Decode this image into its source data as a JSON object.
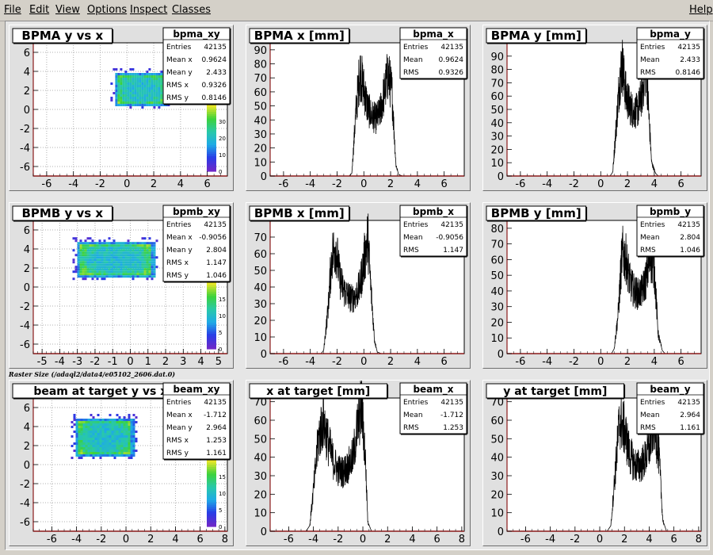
{
  "menu": {
    "file": "File",
    "edit": "Edit",
    "view": "View",
    "options": "Options",
    "inspect": "Inspect",
    "classes": "Classes",
    "help": "Help"
  },
  "raster_label": "Raster Size (/adaql2/data4/e05102_2606.dat.0)",
  "colors": {
    "frame": "#8b1a1a",
    "histogram": "#000000"
  },
  "chart_data": [
    {
      "type": "heatmap",
      "title": "BPMA y vs x",
      "stats": {
        "name": "bpma_xy",
        "rows": [
          [
            "Entries",
            "42135"
          ],
          [
            "Mean x",
            "0.9624"
          ],
          [
            "Mean y",
            "2.433"
          ],
          [
            "RMS x",
            "0.9326"
          ],
          [
            "RMS y",
            "0.8146"
          ]
        ]
      },
      "xlim": [
        -7,
        7.5
      ],
      "ylim": [
        -7,
        7
      ],
      "xticks": [
        "-6",
        "-4",
        "-2",
        "0",
        "2",
        "4",
        "6"
      ],
      "yticks": [
        "-6",
        "-4",
        "-2",
        "0",
        "2",
        "4",
        "6"
      ],
      "region": {
        "x": [
          -1,
          2.9
        ],
        "y": [
          0.5,
          4.0
        ]
      },
      "palette_ticks": [
        "0",
        "10",
        "20",
        "30"
      ],
      "palette_max": 40
    },
    {
      "type": "bar",
      "title": "BPMA x [mm]",
      "stats": {
        "name": "bpma_x",
        "rows": [
          [
            "Entries",
            "42135"
          ],
          [
            "Mean",
            "0.9624"
          ],
          [
            "RMS",
            "0.9326"
          ]
        ]
      },
      "xlim": [
        -7,
        7.5
      ],
      "ylim": [
        0,
        95
      ],
      "xticks": [
        "-6",
        "-4",
        "-2",
        "0",
        "2",
        "4",
        "6"
      ],
      "yticks": [
        "0",
        "10",
        "20",
        "30",
        "40",
        "50",
        "60",
        "70",
        "80",
        "90"
      ],
      "profile": {
        "x": [
          -1.1,
          -0.9,
          -0.6,
          -0.3,
          0,
          0.3,
          0.6,
          0.9,
          1.2,
          1.5,
          1.8,
          2.1,
          2.4,
          2.6,
          2.9
        ],
        "y": [
          0,
          2,
          45,
          75,
          62,
          48,
          43,
          41,
          45,
          58,
          73,
          60,
          8,
          1,
          0
        ]
      }
    },
    {
      "type": "bar",
      "title": "BPMA y [mm]",
      "stats": {
        "name": "bpma_y",
        "rows": [
          [
            "Entries",
            "42135"
          ],
          [
            "Mean",
            "2.433"
          ],
          [
            "RMS",
            "0.8146"
          ]
        ]
      },
      "xlim": [
        -7,
        7.5
      ],
      "ylim": [
        0,
        100
      ],
      "xticks": [
        "-6",
        "-4",
        "-2",
        "0",
        "2",
        "4",
        "6"
      ],
      "yticks": [
        "0",
        "10",
        "20",
        "30",
        "40",
        "50",
        "60",
        "70",
        "80",
        "90"
      ],
      "profile": {
        "x": [
          0.7,
          0.9,
          1.1,
          1.4,
          1.6,
          1.9,
          2.2,
          2.5,
          2.8,
          3.1,
          3.4,
          3.6,
          3.8,
          4.1,
          4.3
        ],
        "y": [
          0,
          3,
          30,
          70,
          85,
          60,
          52,
          48,
          50,
          63,
          85,
          45,
          10,
          2,
          0
        ]
      }
    },
    {
      "type": "heatmap",
      "title": "BPMB y vs x",
      "stats": {
        "name": "bpmb_xy",
        "rows": [
          [
            "Entries",
            "42135"
          ],
          [
            "Mean x",
            "-0.9056"
          ],
          [
            "Mean y",
            "2.804"
          ],
          [
            "RMS x",
            "1.147"
          ],
          [
            "RMS y",
            "1.046"
          ]
        ]
      },
      "xlim": [
        -5.5,
        5.5
      ],
      "ylim": [
        -7,
        7
      ],
      "xticks": [
        "-5",
        "-4",
        "-3",
        "-2",
        "-1",
        "0",
        "1",
        "2",
        "3",
        "4",
        "5"
      ],
      "yticks": [
        "-6",
        "-4",
        "-2",
        "0",
        "2",
        "4",
        "6"
      ],
      "region": {
        "x": [
          -3.1,
          1.3
        ],
        "y": [
          1.1,
          4.9
        ]
      },
      "palette_ticks": [
        "0",
        "5",
        "10",
        "15"
      ],
      "palette_max": 20
    },
    {
      "type": "bar",
      "title": "BPMB x [mm]",
      "stats": {
        "name": "bpmb_x",
        "rows": [
          [
            "Entries",
            "42135"
          ],
          [
            "Mean",
            "-0.9056"
          ],
          [
            "RMS",
            "1.147"
          ]
        ]
      },
      "xlim": [
        -7,
        7.5
      ],
      "ylim": [
        0,
        80
      ],
      "xticks": [
        "-6",
        "-4",
        "-2",
        "0",
        "2",
        "4",
        "6"
      ],
      "yticks": [
        "0",
        "10",
        "20",
        "30",
        "40",
        "50",
        "60",
        "70"
      ],
      "profile": {
        "x": [
          -3.2,
          -3.0,
          -2.7,
          -2.4,
          -2.1,
          -1.8,
          -1.5,
          -1.2,
          -0.9,
          -0.6,
          -0.3,
          0,
          0.3,
          0.5,
          0.8,
          1.0,
          1.3
        ],
        "y": [
          0,
          2,
          25,
          58,
          65,
          45,
          38,
          35,
          33,
          35,
          40,
          55,
          70,
          42,
          8,
          1,
          0
        ]
      }
    },
    {
      "type": "bar",
      "title": "BPMB y [mm]",
      "stats": {
        "name": "bpmb_y",
        "rows": [
          [
            "Entries",
            "42135"
          ],
          [
            "Mean",
            "2.804"
          ],
          [
            "RMS",
            "1.046"
          ]
        ]
      },
      "xlim": [
        -7,
        7.5
      ],
      "ylim": [
        0,
        85
      ],
      "xticks": [
        "-6",
        "-4",
        "-2",
        "0",
        "2",
        "4",
        "6"
      ],
      "yticks": [
        "0",
        "10",
        "20",
        "30",
        "40",
        "50",
        "60",
        "70",
        "80"
      ],
      "profile": {
        "x": [
          0.8,
          1.0,
          1.3,
          1.6,
          1.9,
          2.2,
          2.5,
          2.8,
          3.1,
          3.4,
          3.7,
          4.0,
          4.3,
          4.6,
          4.8
        ],
        "y": [
          0,
          3,
          25,
          65,
          60,
          45,
          40,
          38,
          40,
          48,
          62,
          55,
          12,
          2,
          0
        ]
      }
    },
    {
      "type": "heatmap",
      "title": "beam at target y vs x",
      "stats": {
        "name": "beam_xy",
        "rows": [
          [
            "Entries",
            "42135"
          ],
          [
            "Mean x",
            "-1.712"
          ],
          [
            "Mean y",
            "2.964"
          ],
          [
            "RMS x",
            "1.253"
          ],
          [
            "RMS y",
            "1.161"
          ]
        ]
      },
      "xlim": [
        -7.5,
        8.2
      ],
      "ylim": [
        -7,
        7
      ],
      "xticks": [
        "-6",
        "-4",
        "-2",
        "0",
        "2",
        "4",
        "6",
        "8"
      ],
      "yticks": [
        "-6",
        "-4",
        "-2",
        "0",
        "2",
        "4",
        "6"
      ],
      "region": {
        "x": [
          -4.2,
          0.6
        ],
        "y": [
          1.0,
          5.0
        ]
      },
      "palette_ticks": [
        "0",
        "5",
        "10",
        "15"
      ],
      "palette_max": 20
    },
    {
      "type": "bar",
      "title": "x at target [mm]",
      "stats": {
        "name": "beam_x",
        "rows": [
          [
            "Entries",
            "42135"
          ],
          [
            "Mean",
            "-1.712"
          ],
          [
            "RMS",
            "1.253"
          ]
        ]
      },
      "xlim": [
        -7.5,
        8.2
      ],
      "ylim": [
        0,
        72
      ],
      "xticks": [
        "-6",
        "-4",
        "-2",
        "0",
        "2",
        "4",
        "6",
        "8"
      ],
      "yticks": [
        "0",
        "10",
        "20",
        "30",
        "40",
        "50",
        "60",
        "70"
      ],
      "profile": {
        "x": [
          -4.6,
          -4.3,
          -4.0,
          -3.6,
          -3.2,
          -2.8,
          -2.4,
          -2.0,
          -1.6,
          -1.2,
          -0.8,
          -0.4,
          -0.1,
          0.2,
          0.4,
          0.7
        ],
        "y": [
          0,
          3,
          22,
          50,
          60,
          48,
          38,
          33,
          32,
          35,
          40,
          58,
          68,
          40,
          5,
          0
        ]
      }
    },
    {
      "type": "bar",
      "title": "y at target [mm]",
      "stats": {
        "name": "beam_y",
        "rows": [
          [
            "Entries",
            "42135"
          ],
          [
            "Mean",
            "2.964"
          ],
          [
            "RMS",
            "1.161"
          ]
        ]
      },
      "xlim": [
        -7.5,
        8.2
      ],
      "ylim": [
        0,
        72
      ],
      "xticks": [
        "-6",
        "-4",
        "-2",
        "0",
        "2",
        "4",
        "6",
        "8"
      ],
      "yticks": [
        "0",
        "10",
        "20",
        "30",
        "40",
        "50",
        "60",
        "70"
      ],
      "profile": {
        "x": [
          0.6,
          0.9,
          1.2,
          1.6,
          2.0,
          2.4,
          2.8,
          3.2,
          3.6,
          4.0,
          4.4,
          4.8,
          5.1,
          5.4
        ],
        "y": [
          0,
          3,
          28,
          60,
          55,
          42,
          36,
          35,
          38,
          45,
          60,
          40,
          6,
          0
        ]
      }
    }
  ]
}
